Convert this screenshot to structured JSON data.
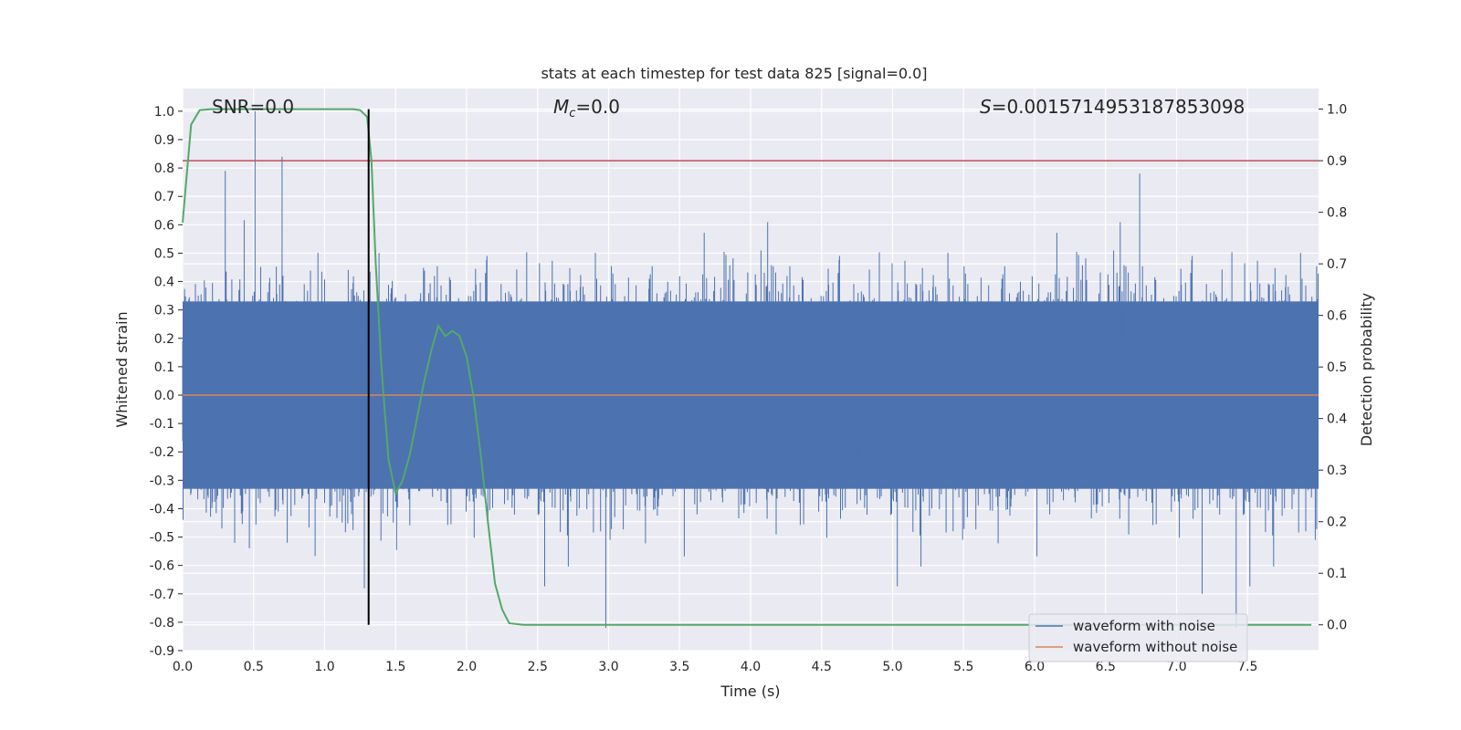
{
  "chart_data": {
    "type": "line",
    "title": "stats at each timestep for test data 825 [signal=0.0]",
    "xlabel": "Time (s)",
    "ylabel": "Whitened strain",
    "y2label": "Detection probability",
    "xlim": [
      0.0,
      8.0
    ],
    "ylim": [
      -0.9,
      1.08
    ],
    "y2lim": [
      -0.05,
      1.04
    ],
    "x_ticks": [
      "0.0",
      "0.5",
      "1.0",
      "1.5",
      "2.0",
      "2.5",
      "3.0",
      "3.5",
      "4.0",
      "4.5",
      "5.0",
      "5.5",
      "6.0",
      "6.5",
      "7.0",
      "7.5"
    ],
    "y_ticks": [
      "1.0",
      "0.9",
      "0.8",
      "0.7",
      "0.6",
      "0.5",
      "0.4",
      "0.3",
      "0.2",
      "0.1",
      "0.0",
      "-0.1",
      "-0.2",
      "-0.3",
      "-0.4",
      "-0.5",
      "-0.6",
      "-0.7",
      "-0.8",
      "-0.9"
    ],
    "y2_ticks": [
      "1.0",
      "0.9",
      "0.8",
      "0.7",
      "0.6",
      "0.5",
      "0.4",
      "0.3",
      "0.2",
      "0.1",
      "0.0"
    ],
    "grid": true,
    "legend_position": "lower-right",
    "annotations": {
      "snr": "SNR=0.0",
      "mc_symbol": "M",
      "mc_sub": "c",
      "mc_value": "=0.0",
      "s_symbol": "S",
      "s_value": "=0.0015714953187853098"
    },
    "series": [
      {
        "name": "waveform with noise",
        "color": "#4c72b0",
        "envelope_typical": [
          -0.35,
          0.35
        ],
        "peak_max": 1.0,
        "peak_min": -0.82
      },
      {
        "name": "waveform without noise",
        "color": "#dd8452",
        "values_constant": 0.0
      }
    ],
    "detection_probability": {
      "color": "#55a868",
      "x": [
        0.0,
        0.06,
        0.12,
        0.2,
        0.3,
        0.5,
        0.8,
        1.0,
        1.2,
        1.25,
        1.3,
        1.33,
        1.36,
        1.4,
        1.45,
        1.5,
        1.55,
        1.6,
        1.65,
        1.7,
        1.75,
        1.8,
        1.85,
        1.9,
        1.95,
        2.0,
        2.05,
        2.1,
        2.15,
        2.2,
        2.25,
        2.3,
        2.4,
        2.6,
        3.0,
        5.0,
        7.95
      ],
      "y": [
        0.78,
        0.97,
        0.998,
        1.0,
        1.0,
        1.0,
        1.0,
        1.0,
        1.0,
        0.998,
        0.985,
        0.9,
        0.7,
        0.5,
        0.32,
        0.255,
        0.28,
        0.33,
        0.4,
        0.47,
        0.53,
        0.58,
        0.56,
        0.57,
        0.56,
        0.52,
        0.44,
        0.33,
        0.2,
        0.08,
        0.03,
        0.003,
        0.0,
        0.0,
        0.0,
        0.0,
        0.0
      ]
    },
    "threshold_line": {
      "value": 0.9,
      "color": "#c44e52",
      "axis": "right"
    },
    "vertical_marker": {
      "x": 1.31,
      "y_from": 0.0,
      "y_to": 1.0,
      "axis": "right",
      "color": "#000000"
    }
  }
}
